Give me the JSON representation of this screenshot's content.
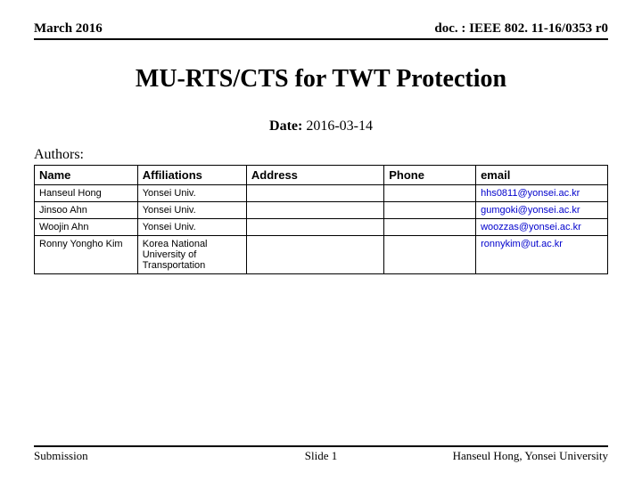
{
  "header": {
    "left": "March 2016",
    "right": "doc. : IEEE 802. 11-16/0353 r0"
  },
  "title": "MU-RTS/CTS for TWT Protection",
  "date": {
    "label": "Date:",
    "value": "2016-03-14"
  },
  "authors_label": "Authors:",
  "table": {
    "columns": [
      "Name",
      "Affiliations",
      "Address",
      "Phone",
      "email"
    ],
    "col_widths": [
      "18%",
      "19%",
      "24%",
      "16%",
      "23%"
    ],
    "rows": [
      {
        "name": "Hanseul Hong",
        "affiliation": "Yonsei Univ.",
        "address": "",
        "phone": "",
        "email": "hhs0811@yonsei.ac.kr"
      },
      {
        "name": "Jinsoo Ahn",
        "affiliation": "Yonsei Univ.",
        "address": "",
        "phone": "",
        "email": "gumgoki@yonsei.ac.kr"
      },
      {
        "name": "Woojin Ahn",
        "affiliation": "Yonsei Univ.",
        "address": "",
        "phone": "",
        "email": "woozzas@yonsei.ac.kr"
      },
      {
        "name": "Ronny Yongho Kim",
        "affiliation": "Korea National University of Transportation",
        "address": "",
        "phone": "",
        "email": "ronnykim@ut.ac.kr"
      }
    ]
  },
  "footer": {
    "left": "Submission",
    "mid": "Slide 1",
    "right": "Hanseul Hong, Yonsei University"
  },
  "colors": {
    "text": "#000000",
    "link": "#0000cc",
    "border": "#000000",
    "bg": "#ffffff"
  }
}
